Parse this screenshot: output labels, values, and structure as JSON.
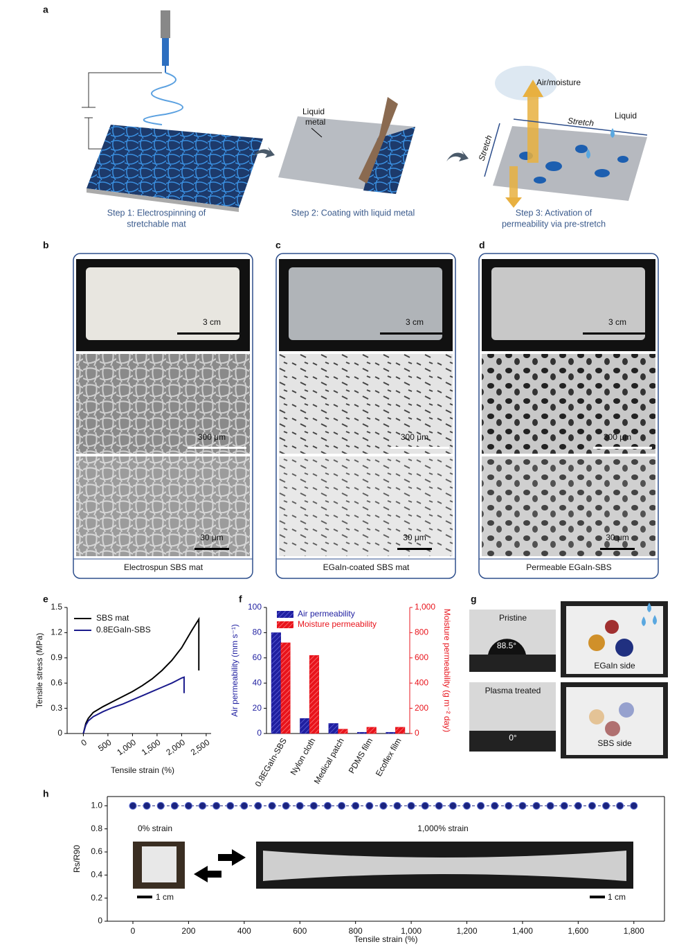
{
  "panel_labels": [
    "a",
    "b",
    "c",
    "d",
    "e",
    "f",
    "g",
    "h"
  ],
  "panel_a": {
    "step_1": [
      "Step 1: Electrospinning of",
      "stretchable mat"
    ],
    "step_2": [
      "Step 2: Coating with liquid metal"
    ],
    "step_3": [
      "Step 3: Activation of",
      "permeability via pre-stretch"
    ],
    "liquid_metal": [
      "Liquid",
      "metal"
    ],
    "air_moisture": "Air/moisture",
    "stretch_horizontal": "Stretch",
    "stretch_vertical": "Stretch",
    "liquid": "Liquid"
  },
  "panels_bcd": [
    {
      "photo_scale": "3 cm",
      "sem_low_scale": "300 μm",
      "sem_high_scale": "30 μm",
      "caption": "Electrospun SBS mat"
    },
    {
      "photo_scale": "3 cm",
      "sem_low_scale": "300 μm",
      "sem_high_scale": "30 μm",
      "caption": "EGaIn-coated SBS mat"
    },
    {
      "photo_scale": "3 cm",
      "sem_low_scale": "300 μm",
      "sem_high_scale": "30 μm",
      "caption": "Permeable EGaIn-SBS"
    }
  ],
  "panel_g": {
    "pristine": "Pristine",
    "pristine_angle": "88.5°",
    "plasma": "Plasma treated",
    "plasma_angle": "0°",
    "egain_side": "EGaIn side",
    "sbs_side": "SBS side"
  },
  "panel_h_insets": {
    "strain_0": "0% strain",
    "strain_1000": "1,000% strain",
    "scale_left": "1 cm",
    "scale_right": "1 cm"
  },
  "chart_data": [
    {
      "type": "line",
      "x_label": "Tensile strain (%)",
      "y_label": "Tensile stress (MPa)",
      "xlim": [
        -330,
        2600
      ],
      "ylim": [
        0,
        1.5
      ],
      "xticks": [
        0,
        500,
        {
          "value": 1000,
          "label": "1,000"
        },
        {
          "value": 1500,
          "label": "1,500"
        },
        {
          "value": 2000,
          "label": "2,000"
        },
        {
          "value": 2500,
          "label": "2,500"
        }
      ],
      "yticks": [
        0,
        0.3,
        0.6,
        0.9,
        1.2,
        1.5
      ],
      "legend": "upper left",
      "series": [
        {
          "name": "SBS mat",
          "color": "#000000",
          "x": [
            0,
            50,
            100,
            200,
            400,
            600,
            800,
            1000,
            1200,
            1400,
            1600,
            1800,
            2000,
            2200,
            2350,
            2350
          ],
          "values": [
            0,
            0.12,
            0.18,
            0.25,
            0.32,
            0.38,
            0.44,
            0.5,
            0.57,
            0.65,
            0.75,
            0.87,
            1.02,
            1.22,
            1.36,
            0.75
          ]
        },
        {
          "name": "0.8EGaIn-SBS",
          "color": "#1a1a8c",
          "x": [
            0,
            50,
            100,
            200,
            400,
            600,
            800,
            1000,
            1200,
            1400,
            1600,
            1800,
            2000,
            2050,
            2050
          ],
          "values": [
            0,
            0.1,
            0.15,
            0.2,
            0.26,
            0.31,
            0.35,
            0.4,
            0.45,
            0.5,
            0.55,
            0.6,
            0.66,
            0.67,
            0.48
          ]
        }
      ]
    },
    {
      "type": "bar",
      "y_label": "Air permeability (mm s⁻¹)",
      "y2_label": "Moisture permeability (g m⁻² day)",
      "categories": [
        "0.8EGaIn-SBS",
        "Nylon cloth",
        "Medical patch",
        "PDMS film",
        "Ecoflex film"
      ],
      "ylim": [
        0,
        100
      ],
      "yticks": [
        0,
        20,
        40,
        60,
        80,
        100
      ],
      "y2lim": [
        0,
        1000
      ],
      "y2ticks": [
        0,
        200,
        400,
        600,
        800,
        {
          "value": 1000,
          "label": "1,000"
        }
      ],
      "legend": "upper left",
      "series": [
        {
          "name": "Air permeability",
          "color": "#1f1fa0",
          "values": [
            80,
            12,
            8,
            1,
            1
          ]
        },
        {
          "name": "Moisture permeability",
          "color": "#e8141c",
          "axis": "y2",
          "values": [
            720,
            620,
            35,
            50,
            50
          ]
        }
      ]
    },
    {
      "type": "scatter",
      "x_label": "Tensile strain (%)",
      "y_label": "Rs/R90",
      "xlim": [
        -92,
        1910
      ],
      "ylim": [
        0,
        1.08
      ],
      "xticks": [
        0,
        200,
        400,
        600,
        800,
        {
          "value": 1000,
          "label": "1,000"
        },
        {
          "value": 1200,
          "label": "1,200"
        },
        {
          "value": 1400,
          "label": "1,400"
        },
        {
          "value": 1600,
          "label": "1,600"
        },
        {
          "value": 1800,
          "label": "1,800"
        }
      ],
      "yticks": [
        0,
        0.2,
        0.4,
        0.6,
        0.8,
        {
          "value": 1,
          "label": "1.0"
        }
      ],
      "series": [
        {
          "color": "#1a237e",
          "x": [
            0,
            50,
            100,
            150,
            200,
            250,
            300,
            350,
            400,
            450,
            500,
            550,
            600,
            650,
            700,
            750,
            800,
            850,
            900,
            950,
            1000,
            1050,
            1100,
            1150,
            1200,
            1250,
            1300,
            1350,
            1400,
            1450,
            1500,
            1550,
            1600,
            1650,
            1700,
            1750,
            1800
          ],
          "values": [
            1,
            1,
            1,
            1,
            1,
            1,
            1,
            1,
            1,
            1,
            1,
            1,
            1,
            1,
            1,
            1,
            1,
            1,
            1,
            1,
            1,
            1,
            1,
            1,
            1,
            1,
            1,
            1,
            1,
            1,
            1,
            1,
            1,
            1,
            1,
            1,
            1
          ]
        }
      ]
    }
  ]
}
